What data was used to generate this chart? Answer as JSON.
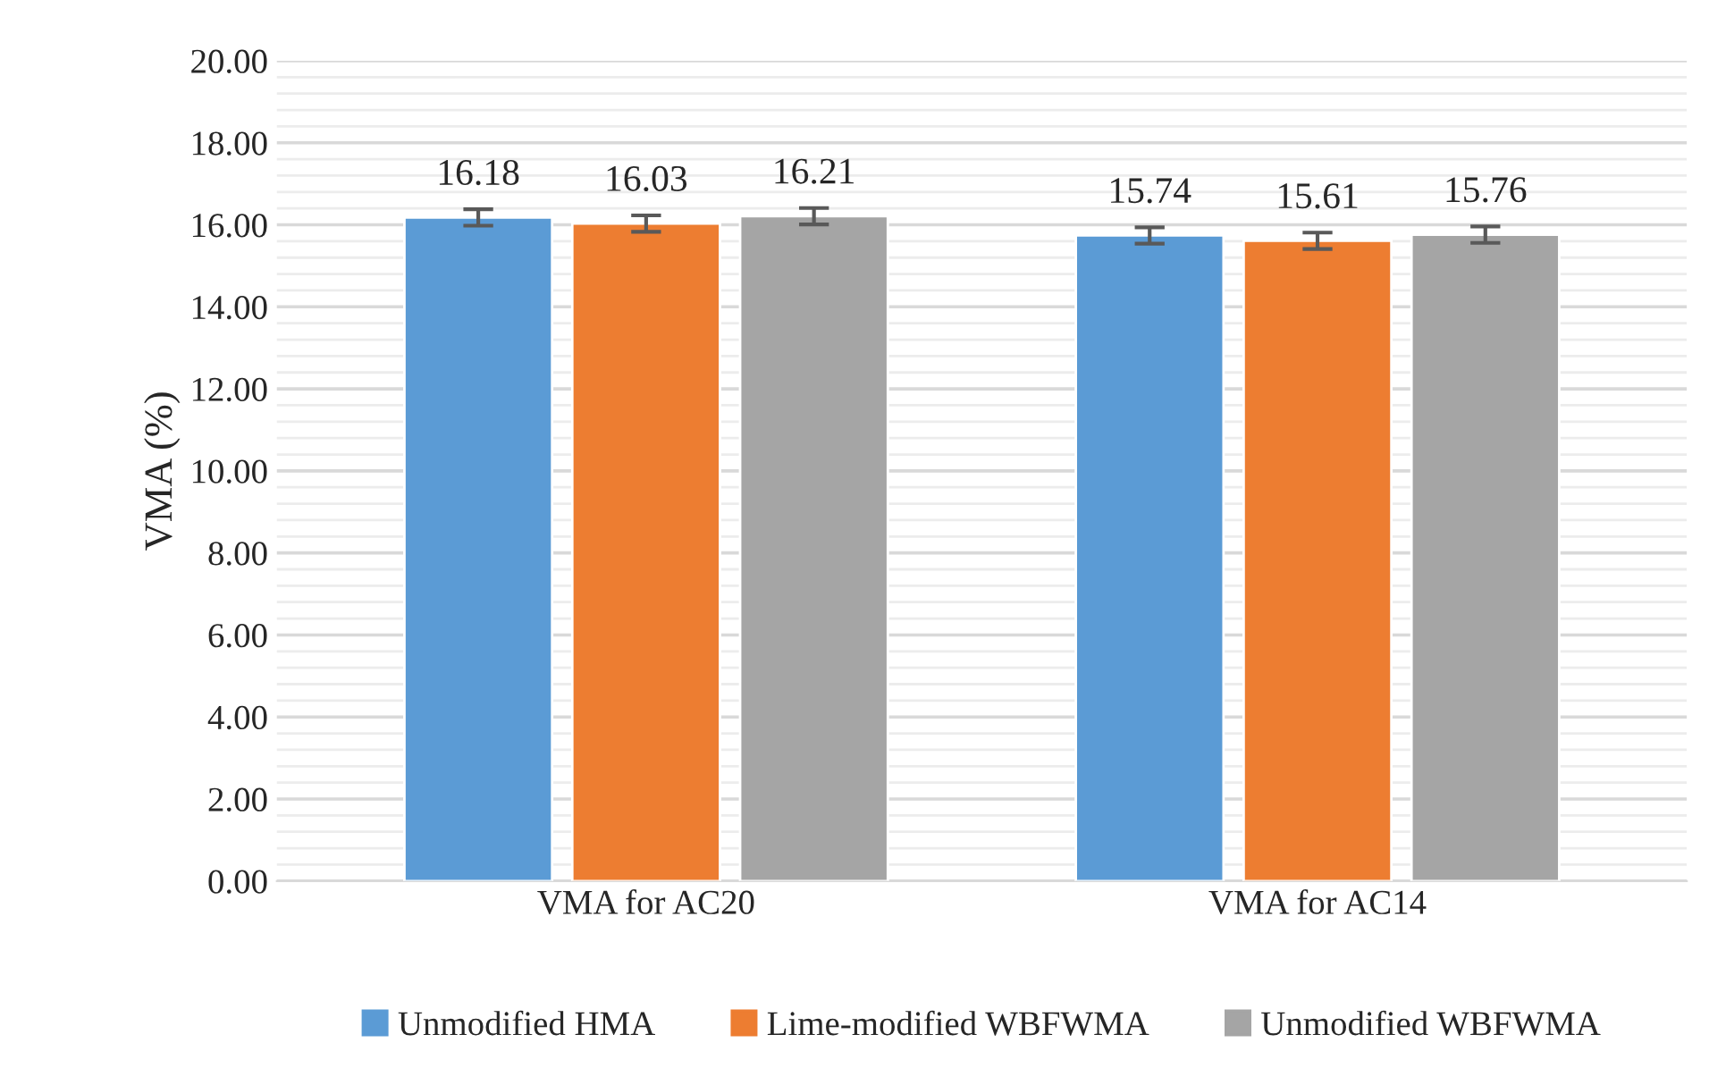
{
  "chart_data": {
    "type": "bar",
    "ylabel": "VMA (%)",
    "categories": [
      "VMA for AC20",
      "VMA for AC14"
    ],
    "series": [
      {
        "name": "Unmodified HMA",
        "color": "#5b9bd5",
        "values": [
          16.18,
          15.74
        ],
        "errors": [
          0.2,
          0.2
        ]
      },
      {
        "name": "Lime-modified WBFWMA",
        "color": "#ed7d31",
        "values": [
          16.03,
          15.61
        ],
        "errors": [
          0.2,
          0.2
        ]
      },
      {
        "name": "Unmodified WBFWMA",
        "color": "#a5a5a5",
        "values": [
          16.21,
          15.76
        ],
        "errors": [
          0.2,
          0.2
        ]
      }
    ],
    "ylim": [
      0,
      20
    ],
    "yticks": [
      {
        "value": 0,
        "label": "0.00"
      },
      {
        "value": 2,
        "label": "2.00"
      },
      {
        "value": 4,
        "label": "4.00"
      },
      {
        "value": 6,
        "label": "6.00"
      },
      {
        "value": 8,
        "label": "8.00"
      },
      {
        "value": 10,
        "label": "10.00"
      },
      {
        "value": 12,
        "label": "12.00"
      },
      {
        "value": 14,
        "label": "14.00"
      },
      {
        "value": 16,
        "label": "16.00"
      },
      {
        "value": 18,
        "label": "18.00"
      },
      {
        "value": 20,
        "label": "20.00"
      }
    ],
    "grid": "y",
    "legend": "bottom",
    "data_labels": true
  }
}
